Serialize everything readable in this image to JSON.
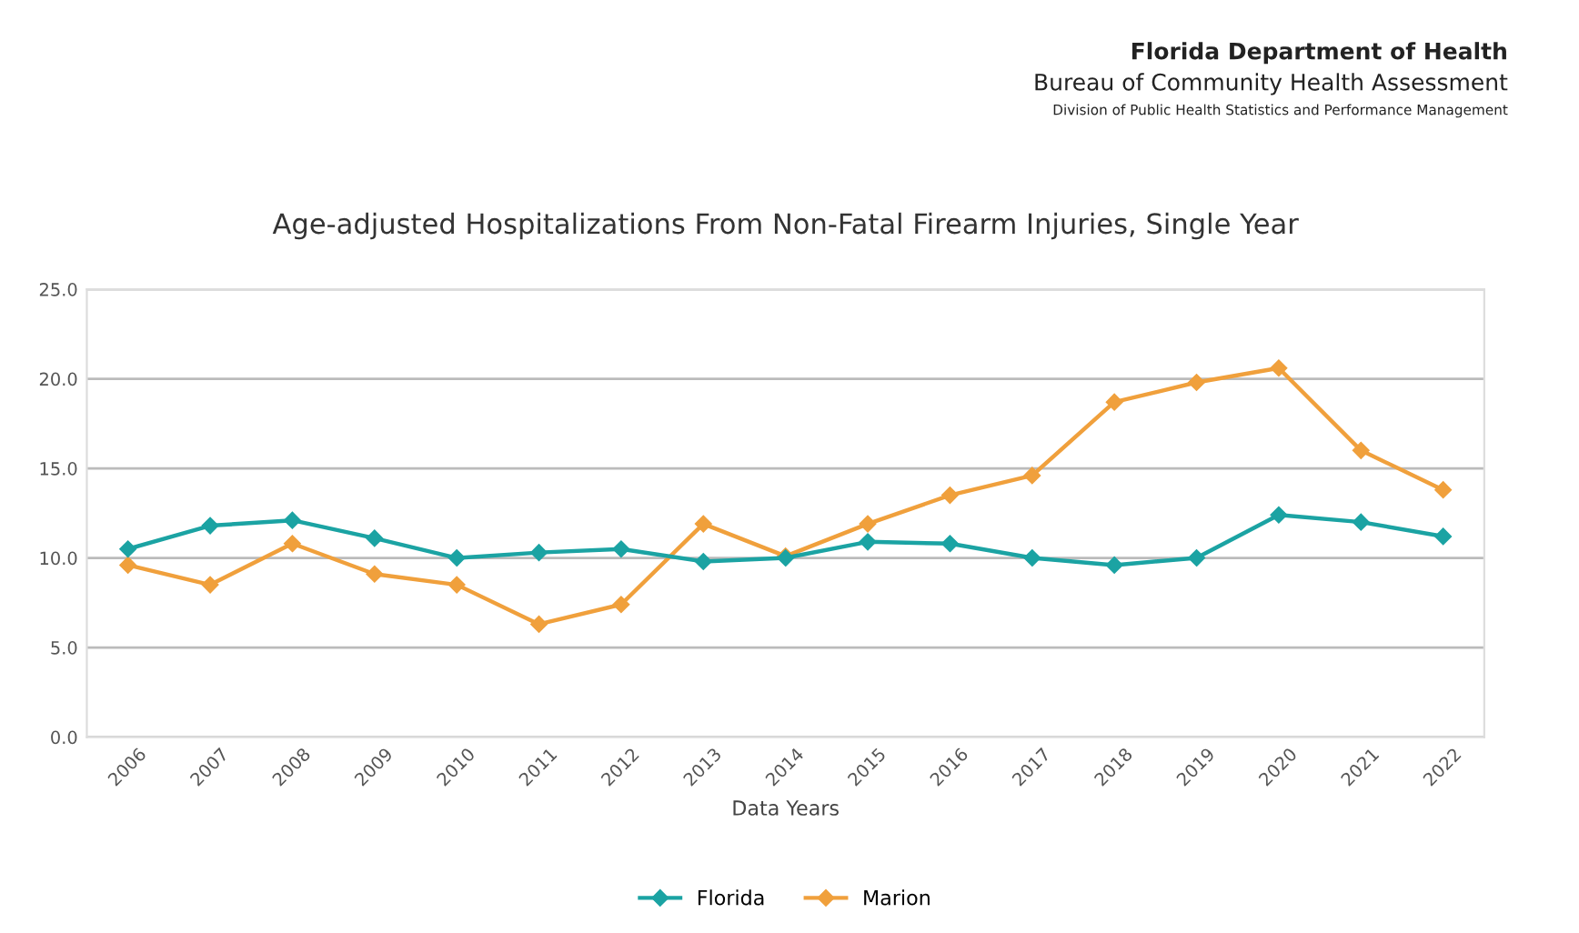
{
  "chart_data": {
    "type": "line",
    "title": "Age-adjusted Hospitalizations From Non-Fatal Firearm Injuries, Single Year",
    "xlabel": "Data Years",
    "annotations": [
      "Florida Department of Health",
      "Bureau of Community Health Assessment",
      "Division of Public Health Statistics and Performance Management"
    ],
    "categories": [
      "2006",
      "2007",
      "2008",
      "2009",
      "2010",
      "2011",
      "2012",
      "2013",
      "2014",
      "2015",
      "2016",
      "2017",
      "2018",
      "2019",
      "2020",
      "2021",
      "2022"
    ],
    "series": [
      {
        "name": "Florida",
        "color": "#1ba3a3",
        "values": [
          10.5,
          11.8,
          12.1,
          11.1,
          10.0,
          10.3,
          10.5,
          9.8,
          10.0,
          10.9,
          10.8,
          10.0,
          9.6,
          10.0,
          12.4,
          12.0,
          11.2
        ]
      },
      {
        "name": "Marion",
        "color": "#f0a03c",
        "values": [
          9.6,
          8.5,
          10.8,
          9.1,
          8.5,
          6.3,
          7.4,
          11.9,
          10.1,
          11.9,
          13.5,
          14.6,
          18.7,
          19.8,
          20.6,
          16.0,
          13.8
        ]
      }
    ],
    "ylim": [
      0,
      25
    ],
    "yticks": [
      {
        "value": 0,
        "label": "0.0"
      },
      {
        "value": 5,
        "label": "5.0"
      },
      {
        "value": 10,
        "label": "10.0"
      },
      {
        "value": 15,
        "label": "15.0"
      },
      {
        "value": 20,
        "label": "20.0"
      },
      {
        "value": 25,
        "label": "25.0"
      }
    ],
    "grid": "y",
    "legend": "bottom",
    "marker": "diamond",
    "line_style": "solid"
  }
}
